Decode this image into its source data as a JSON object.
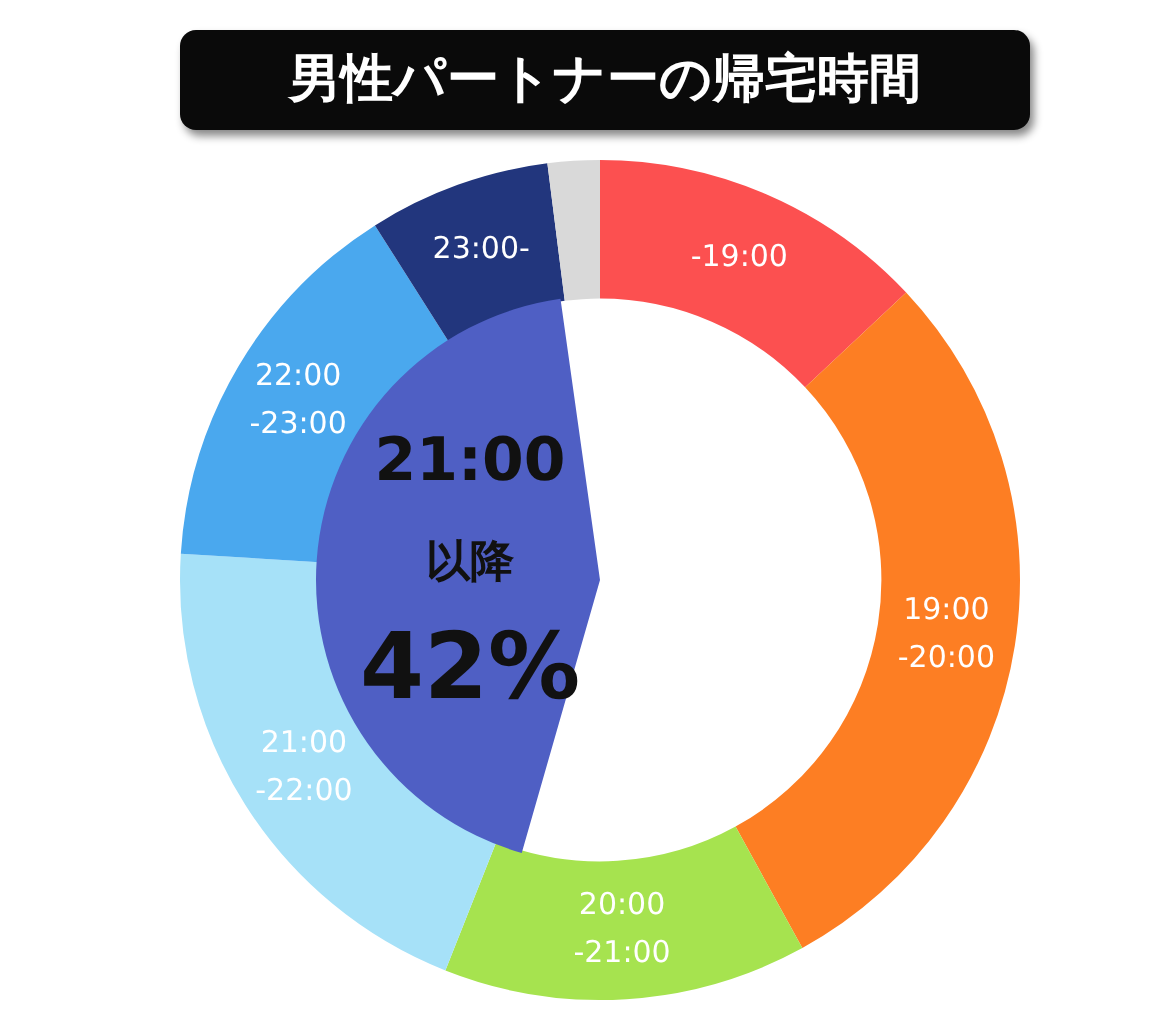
{
  "chart_data": {
    "type": "donut",
    "title": "男性パートナーの帰宅時間",
    "categories": [
      "-19:00",
      "19:00\n-20:00",
      "20:00\n-21:00",
      "21:00\n-22:00",
      "22:00\n-23:00",
      "23:00-",
      null
    ],
    "values": [
      13,
      29,
      14,
      20,
      15,
      7,
      2
    ],
    "colors": [
      "#fc5050",
      "#fd7e23",
      "#a6e34f",
      "#a6e1f8",
      "#4aa8ee",
      "#22367d",
      "#d9d9d9"
    ],
    "annotations": [
      "21:00\n以降\n42%"
    ],
    "legend": false
  }
}
